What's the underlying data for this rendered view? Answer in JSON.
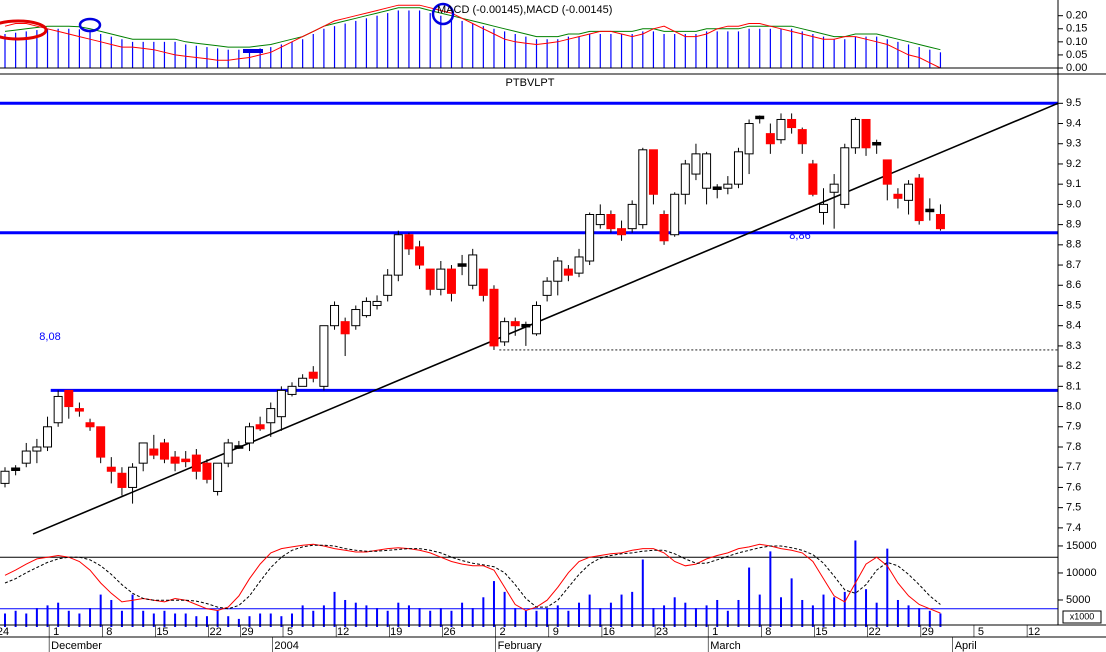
{
  "chart_data": [
    {
      "type": "macd",
      "title": "MACD (-0.00145),MACD (-0.00145)",
      "ylim": [
        0,
        0.26
      ],
      "yticks": [
        {
          "value": 0,
          "label": "0.00"
        },
        0.05,
        {
          "value": 0.1,
          "label": "0.10"
        },
        0.15,
        {
          "value": 0.2,
          "label": "0.20"
        }
      ],
      "bar_color": "#0000ff",
      "histogram": [
        0.13,
        0.135,
        0.14,
        0.145,
        0.15,
        0.15,
        0.15,
        0.148,
        0.14,
        0.13,
        0.12,
        0.11,
        0.1,
        0.1,
        0.1,
        0.1,
        0.1,
        0.09,
        0.085,
        0.08,
        0.075,
        0.07,
        0.07,
        0.07,
        0.075,
        0.08,
        0.09,
        0.1,
        0.11,
        0.13,
        0.15,
        0.16,
        0.17,
        0.18,
        0.19,
        0.2,
        0.21,
        0.22,
        0.22,
        0.22,
        0.21,
        0.2,
        0.19,
        0.18,
        0.17,
        0.16,
        0.15,
        0.14,
        0.13,
        0.12,
        0.11,
        0.11,
        0.11,
        0.12,
        0.12,
        0.13,
        0.13,
        0.13,
        0.13,
        0.13,
        0.14,
        0.14,
        0.13,
        0.13,
        0.13,
        0.13,
        0.14,
        0.14,
        0.14,
        0.14,
        0.15,
        0.15,
        0.15,
        0.15,
        0.15,
        0.14,
        0.13,
        0.12,
        0.11,
        0.11,
        0.12,
        0.12,
        0.12,
        0.11,
        0.1,
        0.09,
        0.08,
        0.07,
        0.06,
        null,
        null,
        null,
        null,
        null,
        null,
        null,
        null,
        null
      ],
      "series": [
        {
          "color": "#008000",
          "values": [
            0.14,
            0.145,
            0.15,
            0.155,
            0.16,
            0.16,
            0.16,
            0.158,
            0.15,
            0.14,
            0.13,
            0.12,
            0.11,
            0.11,
            0.11,
            0.11,
            0.11,
            0.1,
            0.095,
            0.09,
            0.085,
            0.08,
            0.08,
            0.08,
            0.085,
            0.09,
            0.1,
            0.11,
            0.12,
            0.14,
            0.16,
            0.17,
            0.18,
            0.19,
            0.2,
            0.21,
            0.22,
            0.23,
            0.23,
            0.23,
            0.22,
            0.21,
            0.2,
            0.19,
            0.18,
            0.17,
            0.16,
            0.15,
            0.14,
            0.13,
            0.12,
            0.12,
            0.12,
            0.13,
            0.13,
            0.14,
            0.14,
            0.14,
            0.14,
            0.14,
            0.15,
            0.15,
            0.14,
            0.14,
            0.14,
            0.14,
            0.15,
            0.15,
            0.15,
            0.15,
            0.16,
            0.16,
            0.16,
            0.16,
            0.16,
            0.15,
            0.14,
            0.13,
            0.12,
            0.12,
            0.13,
            0.13,
            0.13,
            0.12,
            0.11,
            0.1,
            0.09,
            0.08,
            0.07,
            null,
            null,
            null,
            null,
            null,
            null,
            null,
            null,
            null
          ]
        },
        {
          "color": "#ff0000",
          "values": [
            0.16,
            0.17,
            0.17,
            0.16,
            0.15,
            0.14,
            0.13,
            0.12,
            0.11,
            0.1,
            0.09,
            0.08,
            0.08,
            0.075,
            0.07,
            0.06,
            0.05,
            0.045,
            0.04,
            0.035,
            0.03,
            0.03,
            0.035,
            0.04,
            0.05,
            0.06,
            0.08,
            0.1,
            0.12,
            0.14,
            0.16,
            0.18,
            0.19,
            0.2,
            0.21,
            0.22,
            0.23,
            0.24,
            0.24,
            0.24,
            0.23,
            0.22,
            0.21,
            0.19,
            0.17,
            0.15,
            0.13,
            0.11,
            0.1,
            0.095,
            0.09,
            0.095,
            0.1,
            0.11,
            0.12,
            0.13,
            0.14,
            0.14,
            0.13,
            0.12,
            0.13,
            0.15,
            0.16,
            0.14,
            0.12,
            0.12,
            0.13,
            0.15,
            0.16,
            0.16,
            0.17,
            0.17,
            0.16,
            0.15,
            0.14,
            0.13,
            0.12,
            0.11,
            0.11,
            0.12,
            0.12,
            0.11,
            0.1,
            0.09,
            0.07,
            0.05,
            0.04,
            0.02,
            0.0,
            null,
            null,
            null,
            null,
            null,
            null,
            null,
            null,
            null
          ]
        }
      ]
    },
    {
      "type": "candlestick",
      "title": "PTBVLPT",
      "categories": [
        "24",
        null,
        null,
        null,
        null,
        "1",
        null,
        null,
        null,
        null,
        "8",
        null,
        null,
        null,
        null,
        "15",
        null,
        null,
        null,
        null,
        "22",
        null,
        null,
        "29",
        null,
        null,
        null,
        "5",
        null,
        null,
        null,
        null,
        "12",
        null,
        null,
        null,
        null,
        "19",
        null,
        null,
        null,
        null,
        "26",
        null,
        null,
        null,
        null,
        "2",
        null,
        null,
        null,
        null,
        "9",
        null,
        null,
        null,
        null,
        "16",
        null,
        null,
        null,
        null,
        "23",
        null,
        null,
        null,
        null,
        "1",
        null,
        null,
        null,
        null,
        "8",
        null,
        null,
        null,
        null,
        "15",
        null,
        null,
        null,
        null,
        "22",
        null,
        null,
        null,
        null,
        "29",
        null,
        null,
        null,
        null,
        "5",
        null,
        null,
        null,
        null,
        "12"
      ],
      "month_labels": [
        "December",
        "2004",
        "February",
        "March",
        "April"
      ],
      "open": [
        7.62,
        7.69,
        7.72,
        7.78,
        7.8,
        7.92,
        8.08,
        7.99,
        7.92,
        7.9,
        7.7,
        7.67,
        7.6,
        7.72,
        7.79,
        7.82,
        7.75,
        7.74,
        7.76,
        7.72,
        7.58,
        7.72,
        7.8,
        7.82,
        7.91,
        7.92,
        7.95,
        8.06,
        8.1,
        8.17,
        8.1,
        8.4,
        8.42,
        8.4,
        8.45,
        8.5,
        8.55,
        8.65,
        8.85,
        8.79,
        8.68,
        8.58,
        8.68,
        8.7,
        8.6,
        8.68,
        8.58,
        8.32,
        8.42,
        8.4,
        8.36,
        8.55,
        8.62,
        8.68,
        8.66,
        8.72,
        8.9,
        8.95,
        8.88,
        8.88,
        8.9,
        9.27,
        8.95,
        8.85,
        9.05,
        9.15,
        9.08,
        9.08,
        9.08,
        9.1,
        9.25,
        9.43,
        9.35,
        9.32,
        9.42,
        9.37,
        9.2,
        8.96,
        9.06,
        9.0,
        9.28,
        9.42,
        9.3,
        9.22,
        9.05,
        9.02,
        9.13,
        8.97,
        8.95,
        null,
        null,
        null,
        null,
        null,
        null,
        null,
        null,
        null
      ],
      "high": [
        7.7,
        7.71,
        7.82,
        7.84,
        7.95,
        8.08,
        8.08,
        8.02,
        7.94,
        7.9,
        7.75,
        7.7,
        7.72,
        7.82,
        7.86,
        7.84,
        7.78,
        7.78,
        7.79,
        7.74,
        7.72,
        7.84,
        7.83,
        7.92,
        7.95,
        8.02,
        8.1,
        8.12,
        8.16,
        8.2,
        8.4,
        8.52,
        8.44,
        8.5,
        8.54,
        8.55,
        8.68,
        8.87,
        8.86,
        8.82,
        8.68,
        8.72,
        8.7,
        8.75,
        8.78,
        8.68,
        8.6,
        8.44,
        8.44,
        8.42,
        8.52,
        8.64,
        8.74,
        8.7,
        8.78,
        8.96,
        9.0,
        8.97,
        8.92,
        9.02,
        9.28,
        9.27,
        8.97,
        9.06,
        9.22,
        9.3,
        9.26,
        9.1,
        9.14,
        9.28,
        9.42,
        9.44,
        9.4,
        9.45,
        9.45,
        9.38,
        9.22,
        9.08,
        9.15,
        9.3,
        9.43,
        9.42,
        9.32,
        9.22,
        9.08,
        9.12,
        9.15,
        9.03,
        9.0,
        null,
        null,
        null,
        null,
        null,
        null,
        null,
        null,
        null
      ],
      "low": [
        7.6,
        7.66,
        7.7,
        7.72,
        7.78,
        7.9,
        7.94,
        7.95,
        7.88,
        7.72,
        7.62,
        7.56,
        7.52,
        7.68,
        7.74,
        7.72,
        7.68,
        7.7,
        7.64,
        7.62,
        7.56,
        7.7,
        7.79,
        7.78,
        7.88,
        7.85,
        7.88,
        8.05,
        8.1,
        8.12,
        8.08,
        8.38,
        8.25,
        8.38,
        8.44,
        8.48,
        8.52,
        8.62,
        8.75,
        8.68,
        8.55,
        8.55,
        8.52,
        8.65,
        8.58,
        8.52,
        8.28,
        8.3,
        8.35,
        8.3,
        8.35,
        8.52,
        8.55,
        8.62,
        8.64,
        8.7,
        8.88,
        8.86,
        8.82,
        8.86,
        8.88,
        9.0,
        8.8,
        8.84,
        9.0,
        9.12,
        9.0,
        9.03,
        9.05,
        9.08,
        9.15,
        9.4,
        9.25,
        9.3,
        9.35,
        9.25,
        9.04,
        8.9,
        8.88,
        8.98,
        9.25,
        9.24,
        9.25,
        9.02,
        8.98,
        8.95,
        8.9,
        8.92,
        8.87,
        null,
        null,
        null,
        null,
        null,
        null,
        null,
        null,
        null
      ],
      "close": [
        7.68,
        7.69,
        7.78,
        7.8,
        7.9,
        8.05,
        8.0,
        7.98,
        7.9,
        7.75,
        7.68,
        7.6,
        7.7,
        7.82,
        7.76,
        7.74,
        7.72,
        7.73,
        7.68,
        7.64,
        7.72,
        7.82,
        7.8,
        7.9,
        7.89,
        7.99,
        8.08,
        8.1,
        8.14,
        8.14,
        8.4,
        8.5,
        8.36,
        8.48,
        8.52,
        8.52,
        8.65,
        8.85,
        8.78,
        8.7,
        8.58,
        8.68,
        8.56,
        8.7,
        8.75,
        8.55,
        8.3,
        8.42,
        8.4,
        8.4,
        8.5,
        8.62,
        8.72,
        8.65,
        8.74,
        8.95,
        8.95,
        8.88,
        8.85,
        9.0,
        9.27,
        9.05,
        8.82,
        9.05,
        9.2,
        9.25,
        9.25,
        9.08,
        9.1,
        9.26,
        9.4,
        9.43,
        9.3,
        9.42,
        9.38,
        9.3,
        9.05,
        9.0,
        9.1,
        9.28,
        9.42,
        9.28,
        9.3,
        9.1,
        9.03,
        9.1,
        8.92,
        8.97,
        8.88,
        null,
        null,
        null,
        null,
        null,
        null,
        null,
        null,
        null
      ],
      "up_color": "#ffffff",
      "down_color": "#ff0000",
      "flat_color": "#000000",
      "ylim": [
        7.34,
        9.64
      ],
      "yticks": [
        7.4,
        7.5,
        7.6,
        7.7,
        7.8,
        7.9,
        {
          "value": 8,
          "label": "8.0"
        },
        8.1,
        8.2,
        8.3,
        8.4,
        8.5,
        8.6,
        8.7,
        8.8,
        8.9,
        {
          "value": 9,
          "label": "9.0"
        },
        9.1,
        9.2,
        9.3,
        9.4,
        9.5
      ],
      "levels": [
        {
          "value": 9.5
        },
        {
          "value": 8.86,
          "label": "8,86"
        },
        {
          "value": 8.08,
          "label": "8,08"
        }
      ],
      "level_color": "#0000ff",
      "dotted_level": 8.28,
      "trendline": [
        7.37,
        9.5
      ]
    },
    {
      "type": "volume",
      "unit_label": "x1000",
      "color": "#0000ff",
      "ylim": [
        0,
        16100
      ],
      "yticks": [
        5000,
        10000,
        15000
      ],
      "values": [
        2500,
        3000,
        2500,
        3500,
        4000,
        4500,
        3000,
        2500,
        3500,
        6000,
        5000,
        3000,
        6000,
        3000,
        2500,
        3000,
        2500,
        2500,
        2000,
        2000,
        3000,
        2000,
        1500,
        2000,
        2500,
        2500,
        2000,
        2500,
        4000,
        3000,
        4000,
        6500,
        5000,
        4500,
        4000,
        3500,
        3000,
        4500,
        4000,
        3500,
        3000,
        3500,
        3000,
        4500,
        3500,
        5500,
        8500,
        6500,
        3500,
        3000,
        3000,
        3500,
        4000,
        3000,
        4500,
        6000,
        3500,
        4500,
        6000,
        6500,
        12500,
        3500,
        4000,
        5500,
        4500,
        3500,
        4000,
        5000,
        3000,
        5000,
        11000,
        6000,
        14000,
        5500,
        9000,
        5000,
        4000,
        6000,
        5500,
        6500,
        16000,
        7000,
        4500,
        14500,
        5000,
        4000,
        3500,
        3000,
        2500,
        null,
        null,
        null,
        null,
        null,
        null,
        null,
        null,
        null
      ],
      "stochastic": {
        "ylim": [
          0,
          100
        ],
        "levels": [
          20,
          80
        ],
        "level_colors": [
          "#0000ff",
          "#000000"
        ],
        "series": [
          {
            "color": "#ff0000",
            "values": [
              59,
              65,
              72,
              78,
              80,
              82,
              80,
              75,
              65,
              50,
              38,
              28,
              30,
              32,
              30,
              28,
              32,
              30,
              25,
              20,
              18,
              22,
              35,
              55,
              72,
              85,
              90,
              92,
              94,
              95,
              93,
              90,
              88,
              86,
              86,
              88,
              90,
              91,
              90,
              88,
              85,
              80,
              75,
              72,
              70,
              70,
              65,
              45,
              25,
              18,
              22,
              30,
              45,
              62,
              75,
              80,
              82,
              84,
              85,
              88,
              90,
              90,
              85,
              75,
              70,
              72,
              78,
              82,
              85,
              90,
              92,
              95,
              93,
              90,
              88,
              85,
              75,
              55,
              35,
              28,
              50,
              72,
              80,
              70,
              50,
              35,
              25,
              20,
              15,
              null,
              null,
              null,
              null,
              null,
              null,
              null,
              null,
              null
            ]
          },
          {
            "color": "#000000",
            "dashed": true,
            "values": [
              50,
              55,
              62,
              68,
              74,
              78,
              80,
              80,
              77,
              70,
              60,
              48,
              38,
              32,
              30,
              30,
              30,
              30,
              29,
              26,
              22,
              20,
              24,
              35,
              52,
              68,
              80,
              88,
              92,
              94,
              94,
              93,
              90,
              88,
              87,
              87,
              88,
              89,
              90,
              90,
              88,
              85,
              80,
              76,
              73,
              71,
              69,
              62,
              48,
              32,
              22,
              22,
              30,
              45,
              60,
              72,
              79,
              82,
              84,
              85,
              87,
              88,
              88,
              84,
              78,
              73,
              73,
              77,
              81,
              85,
              88,
              91,
              93,
              93,
              91,
              88,
              83,
              73,
              58,
              42,
              38,
              48,
              65,
              74,
              70,
              60,
              48,
              35,
              25,
              null,
              null,
              null,
              null,
              null,
              null,
              null,
              null,
              null
            ]
          }
        ]
      }
    }
  ]
}
